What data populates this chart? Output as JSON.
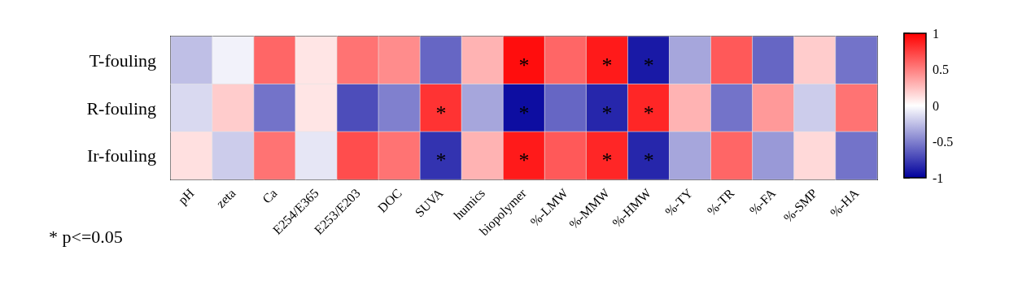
{
  "chart_data": {
    "type": "heatmap",
    "categories": [
      "pH",
      "zeta",
      "Ca",
      "E254/E365",
      "E253/E203",
      "DOC",
      "SUVA",
      "humics",
      "biopolymer",
      "%-LMW",
      "%-MMW",
      "%-HMW",
      "%-TY",
      "%-TR",
      "%-FA",
      "%-SMP",
      "%-HA"
    ],
    "y_categories": [
      "T-fouling",
      "R-fouling",
      "Ir-fouling"
    ],
    "cells": [
      [
        -0.25,
        -0.05,
        0.6,
        0.1,
        0.55,
        0.45,
        -0.6,
        0.3,
        0.95,
        0.6,
        0.9,
        -0.9,
        -0.35,
        0.65,
        -0.6,
        0.2,
        -0.55
      ],
      [
        -0.15,
        0.2,
        -0.55,
        0.1,
        -0.7,
        -0.5,
        0.8,
        -0.35,
        -0.95,
        -0.6,
        -0.85,
        0.85,
        0.3,
        -0.55,
        0.4,
        -0.2,
        0.55
      ],
      [
        0.12,
        -0.2,
        0.55,
        -0.1,
        0.7,
        0.55,
        -0.8,
        0.3,
        0.9,
        0.65,
        0.85,
        -0.85,
        -0.35,
        0.6,
        -0.4,
        0.15,
        -0.55
      ]
    ],
    "cell_labels": [
      [
        null,
        null,
        null,
        null,
        null,
        null,
        null,
        null,
        "*",
        null,
        "*",
        "*",
        null,
        null,
        null,
        null,
        null
      ],
      [
        null,
        null,
        null,
        null,
        null,
        null,
        "*",
        null,
        "*",
        null,
        "*",
        "*",
        null,
        null,
        null,
        null,
        null
      ],
      [
        null,
        null,
        null,
        null,
        null,
        null,
        "*",
        null,
        "*",
        null,
        "*",
        "*",
        null,
        null,
        null,
        null,
        null
      ]
    ],
    "clim": [
      -1,
      1
    ],
    "cticks": [
      -1,
      -0.5,
      0,
      0.5,
      1
    ],
    "annotations": [
      "* p<=0.05"
    ]
  }
}
